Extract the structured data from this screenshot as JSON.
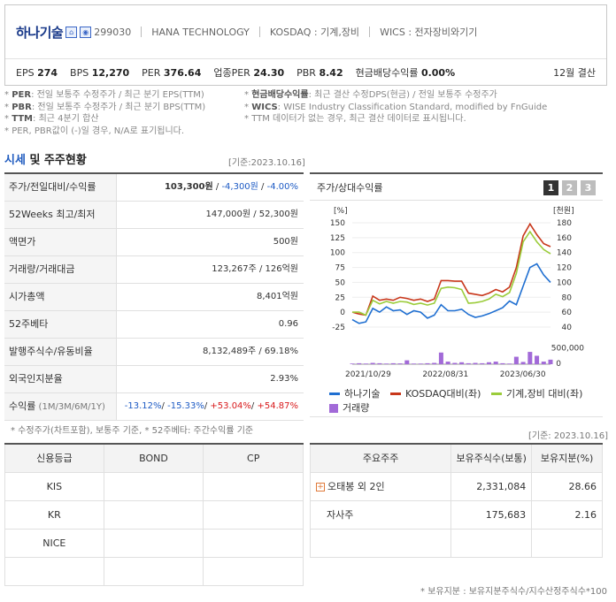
{
  "header": {
    "company_name": "하나기술",
    "code": "299030",
    "english_name": "HANA TECHNOLOGY",
    "market": "KOSDAQ : 기계,장비",
    "wics": "WICS : 전자장비와기기",
    "metrics": [
      {
        "label": "EPS",
        "value": "274"
      },
      {
        "label": "BPS",
        "value": "12,270"
      },
      {
        "label": "PER",
        "value": "376.64"
      },
      {
        "label": "업종PER",
        "value": "24.30"
      },
      {
        "label": "PBR",
        "value": "8.42"
      },
      {
        "label": "현금배당수익률",
        "value": "0.00%"
      }
    ],
    "fiscal": "12월 결산"
  },
  "notes_left": [
    {
      "key": "PER",
      "text": ": 전일 보통주 수정주가 / 최근 분기 EPS(TTM)"
    },
    {
      "key": "PBR",
      "text": ": 전일 보통주 수정주가 / 최근 분기 BPS(TTM)"
    },
    {
      "key": "TTM",
      "text": ": 최근 4분기 합산"
    },
    {
      "key": "",
      "text": "PER, PBR값이 (-)일 경우, N/A로 표기됩니다."
    }
  ],
  "notes_right": [
    {
      "key": "현금배당수익률",
      "text": ": 최근 결산 수정DPS(현금) / 전일 보통주 수정주가"
    },
    {
      "key": "WICS",
      "text": ": WISE Industry Classification Standard, modified by FnGuide"
    },
    {
      "key": "",
      "text": "TTM 데이터가 없는 경우, 최근 결산 데이터로 표시됩니다."
    }
  ],
  "market_section": {
    "title_accent": "시세",
    "title_rest": " 및 주주현황",
    "date": "[기준:2023.10.16]",
    "rows": {
      "price": {
        "label": "주가/전일대비/수익률",
        "price": "103,300원",
        "change": "-4,300원",
        "rate": "-4.00%"
      },
      "range52": {
        "label": "52Weeks 최고/최저",
        "value": "147,000원 / 52,300원"
      },
      "face": {
        "label": "액면가",
        "value": "500원"
      },
      "volume": {
        "label": "거래량/거래대금",
        "value": "123,267주 / 126억원"
      },
      "mcap": {
        "label": "시가총액",
        "value": "8,401억원"
      },
      "beta": {
        "label": "52주베타",
        "value": "0.96"
      },
      "shares": {
        "label": "발행주식수/유동비율",
        "value": "8,132,489주 / 69.18%"
      },
      "foreign": {
        "label": "외국인지분율",
        "value": "2.93%"
      },
      "returns": {
        "label": "수익률",
        "label_sub": " (1M/3M/6M/1Y)",
        "r1": "-13.12%",
        "r3": "-15.33%",
        "r6": "+53.04%",
        "r12": "+54.87%"
      }
    },
    "note": "* 수정주가(차트포함), 보통주 기준, * 52주베타: 주간수익률 기준"
  },
  "chart": {
    "title": "주가/상대수익률",
    "tabs": [
      "1",
      "2",
      "3"
    ],
    "active_tab": "1",
    "legend": [
      {
        "name": "하나기술",
        "color": "#1f6fd1"
      },
      {
        "name": "KOSDAQ대비(좌)",
        "color": "#c8371b"
      },
      {
        "name": "기계,장비 대비(좌)",
        "color": "#9bcc3a"
      },
      {
        "name": "거래량",
        "color": "#a26ad8"
      }
    ]
  },
  "chart_data": {
    "type": "line",
    "left_axis_unit": "[%]",
    "right_axis_unit": "[천원]",
    "volume_axis_label": "500,000",
    "left_ticks": [
      "150",
      "125",
      "100",
      "75",
      "50",
      "25",
      "0",
      "-25"
    ],
    "right_ticks": [
      "180",
      "160",
      "140",
      "120",
      "100",
      "80",
      "60",
      "40"
    ],
    "x_ticks": [
      "2021/10/29",
      "2022/08/31",
      "2023/06/30"
    ],
    "ylim_left": [
      -25,
      150
    ],
    "ylim_right": [
      40,
      180
    ],
    "series": [
      {
        "name": "하나기술",
        "axis": "right",
        "values": [
          50,
          45,
          47,
          65,
          60,
          67,
          62,
          63,
          57,
          62,
          60,
          52,
          56,
          70,
          62,
          62,
          64,
          57,
          53,
          55,
          58,
          62,
          66,
          75,
          70,
          95,
          120,
          125,
          110,
          100
        ]
      },
      {
        "name": "KOSDAQ대비(좌)",
        "axis": "left",
        "values": [
          0,
          -3,
          -5,
          27,
          20,
          22,
          20,
          25,
          23,
          20,
          22,
          18,
          22,
          53,
          53,
          52,
          52,
          32,
          30,
          28,
          32,
          38,
          34,
          42,
          75,
          128,
          148,
          130,
          115,
          110
        ]
      },
      {
        "name": "기계,장비 대비(좌)",
        "axis": "left",
        "values": [
          0,
          0,
          -5,
          20,
          14,
          18,
          15,
          18,
          17,
          13,
          15,
          12,
          15,
          40,
          42,
          41,
          38,
          15,
          16,
          18,
          22,
          30,
          26,
          33,
          65,
          118,
          135,
          118,
          105,
          98
        ]
      },
      {
        "name": "거래량",
        "axis": "volume",
        "values": [
          20000,
          30000,
          20000,
          40000,
          30000,
          20000,
          30000,
          25000,
          120000,
          20000,
          20000,
          30000,
          40000,
          360000,
          80000,
          40000,
          60000,
          30000,
          40000,
          30000,
          60000,
          80000,
          30000,
          20000,
          230000,
          70000,
          380000,
          260000,
          80000,
          140000
        ]
      }
    ]
  },
  "credit": {
    "headers": [
      "신용등급",
      "BOND",
      "CP"
    ],
    "rows": [
      [
        "KIS",
        "",
        ""
      ],
      [
        "KR",
        "",
        ""
      ],
      [
        "NICE",
        "",
        ""
      ],
      [
        "",
        "",
        ""
      ]
    ]
  },
  "holders": {
    "date": "[기준: 2023.10.16]",
    "headers": [
      "주요주주",
      "보유주식수(보통)",
      "보유지분(%)"
    ],
    "rows": [
      {
        "name": "오태봉 외 2인",
        "shares": "2,331,084",
        "pct": "28.66",
        "expand": "+"
      },
      {
        "name": "자사주",
        "shares": "175,683",
        "pct": "2.16",
        "expand": ""
      },
      {
        "name": "",
        "shares": "",
        "pct": "",
        "expand": ""
      }
    ],
    "note": "* 보유지분 : 보유지분주식수/지수산정주식수*100"
  }
}
